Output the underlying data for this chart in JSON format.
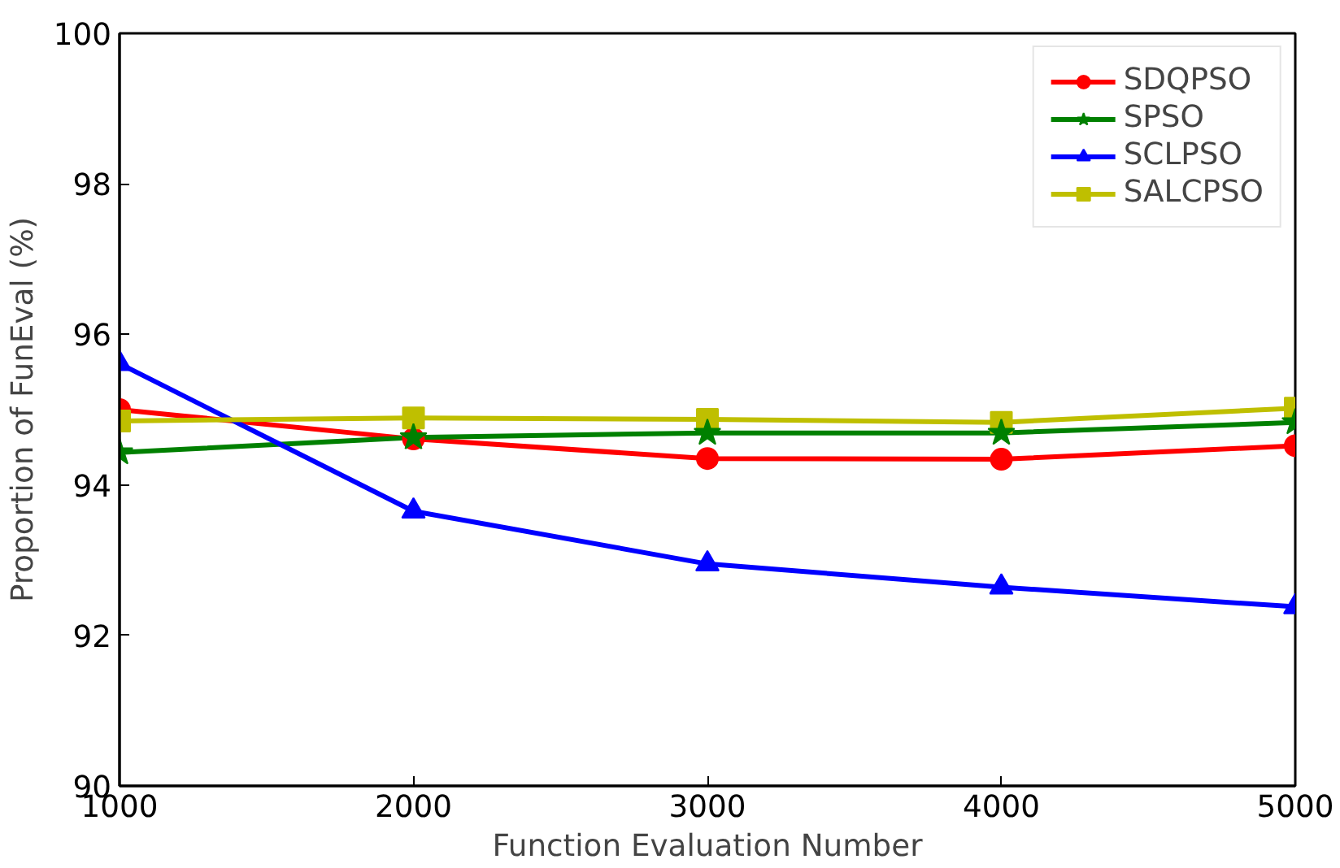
{
  "chart_data": {
    "type": "line",
    "xlabel": "Function Evaluation Number",
    "ylabel": "Proportion of FunEval (%)",
    "x": [
      1000,
      2000,
      3000,
      4000,
      5000
    ],
    "xlim": [
      1000,
      5000
    ],
    "xticks": [
      1000,
      2000,
      3000,
      4000,
      5000
    ],
    "ylim": [
      90,
      100
    ],
    "yticks": [
      90,
      92,
      94,
      96,
      98,
      100
    ],
    "grid": false,
    "legend": "top right",
    "line_style": "solid",
    "series": [
      {
        "name": "SDQPSO",
        "color": "#ff0000",
        "marker": "circle",
        "values": [
          95.0,
          94.61,
          94.35,
          94.34,
          94.52
        ]
      },
      {
        "name": "SPSO",
        "color": "#008000",
        "marker": "star",
        "values": [
          94.43,
          94.63,
          94.69,
          94.69,
          94.83
        ]
      },
      {
        "name": "SCLPSO",
        "color": "#0000ff",
        "marker": "triangle",
        "values": [
          95.61,
          93.65,
          92.95,
          92.64,
          92.38
        ]
      },
      {
        "name": "SALCPSO",
        "color": "#bfbf00",
        "marker": "square",
        "values": [
          94.85,
          94.89,
          94.87,
          94.83,
          95.02
        ]
      }
    ]
  }
}
